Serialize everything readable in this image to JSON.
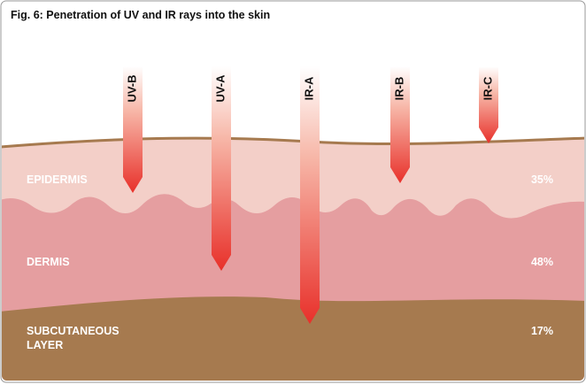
{
  "title": "Fig. 6: Penetration of UV and IR rays into the skin",
  "rays": [
    {
      "label": "UV-B"
    },
    {
      "label": "UV-A"
    },
    {
      "label": "IR-A"
    },
    {
      "label": "IR-B"
    },
    {
      "label": "IR-C"
    }
  ],
  "layers": [
    {
      "label": "EPIDERMIS",
      "share": "35%"
    },
    {
      "label": "DERMIS",
      "share": "48%"
    },
    {
      "label": "SUBCUTANEOUS LAYER",
      "share": "17%"
    }
  ]
}
